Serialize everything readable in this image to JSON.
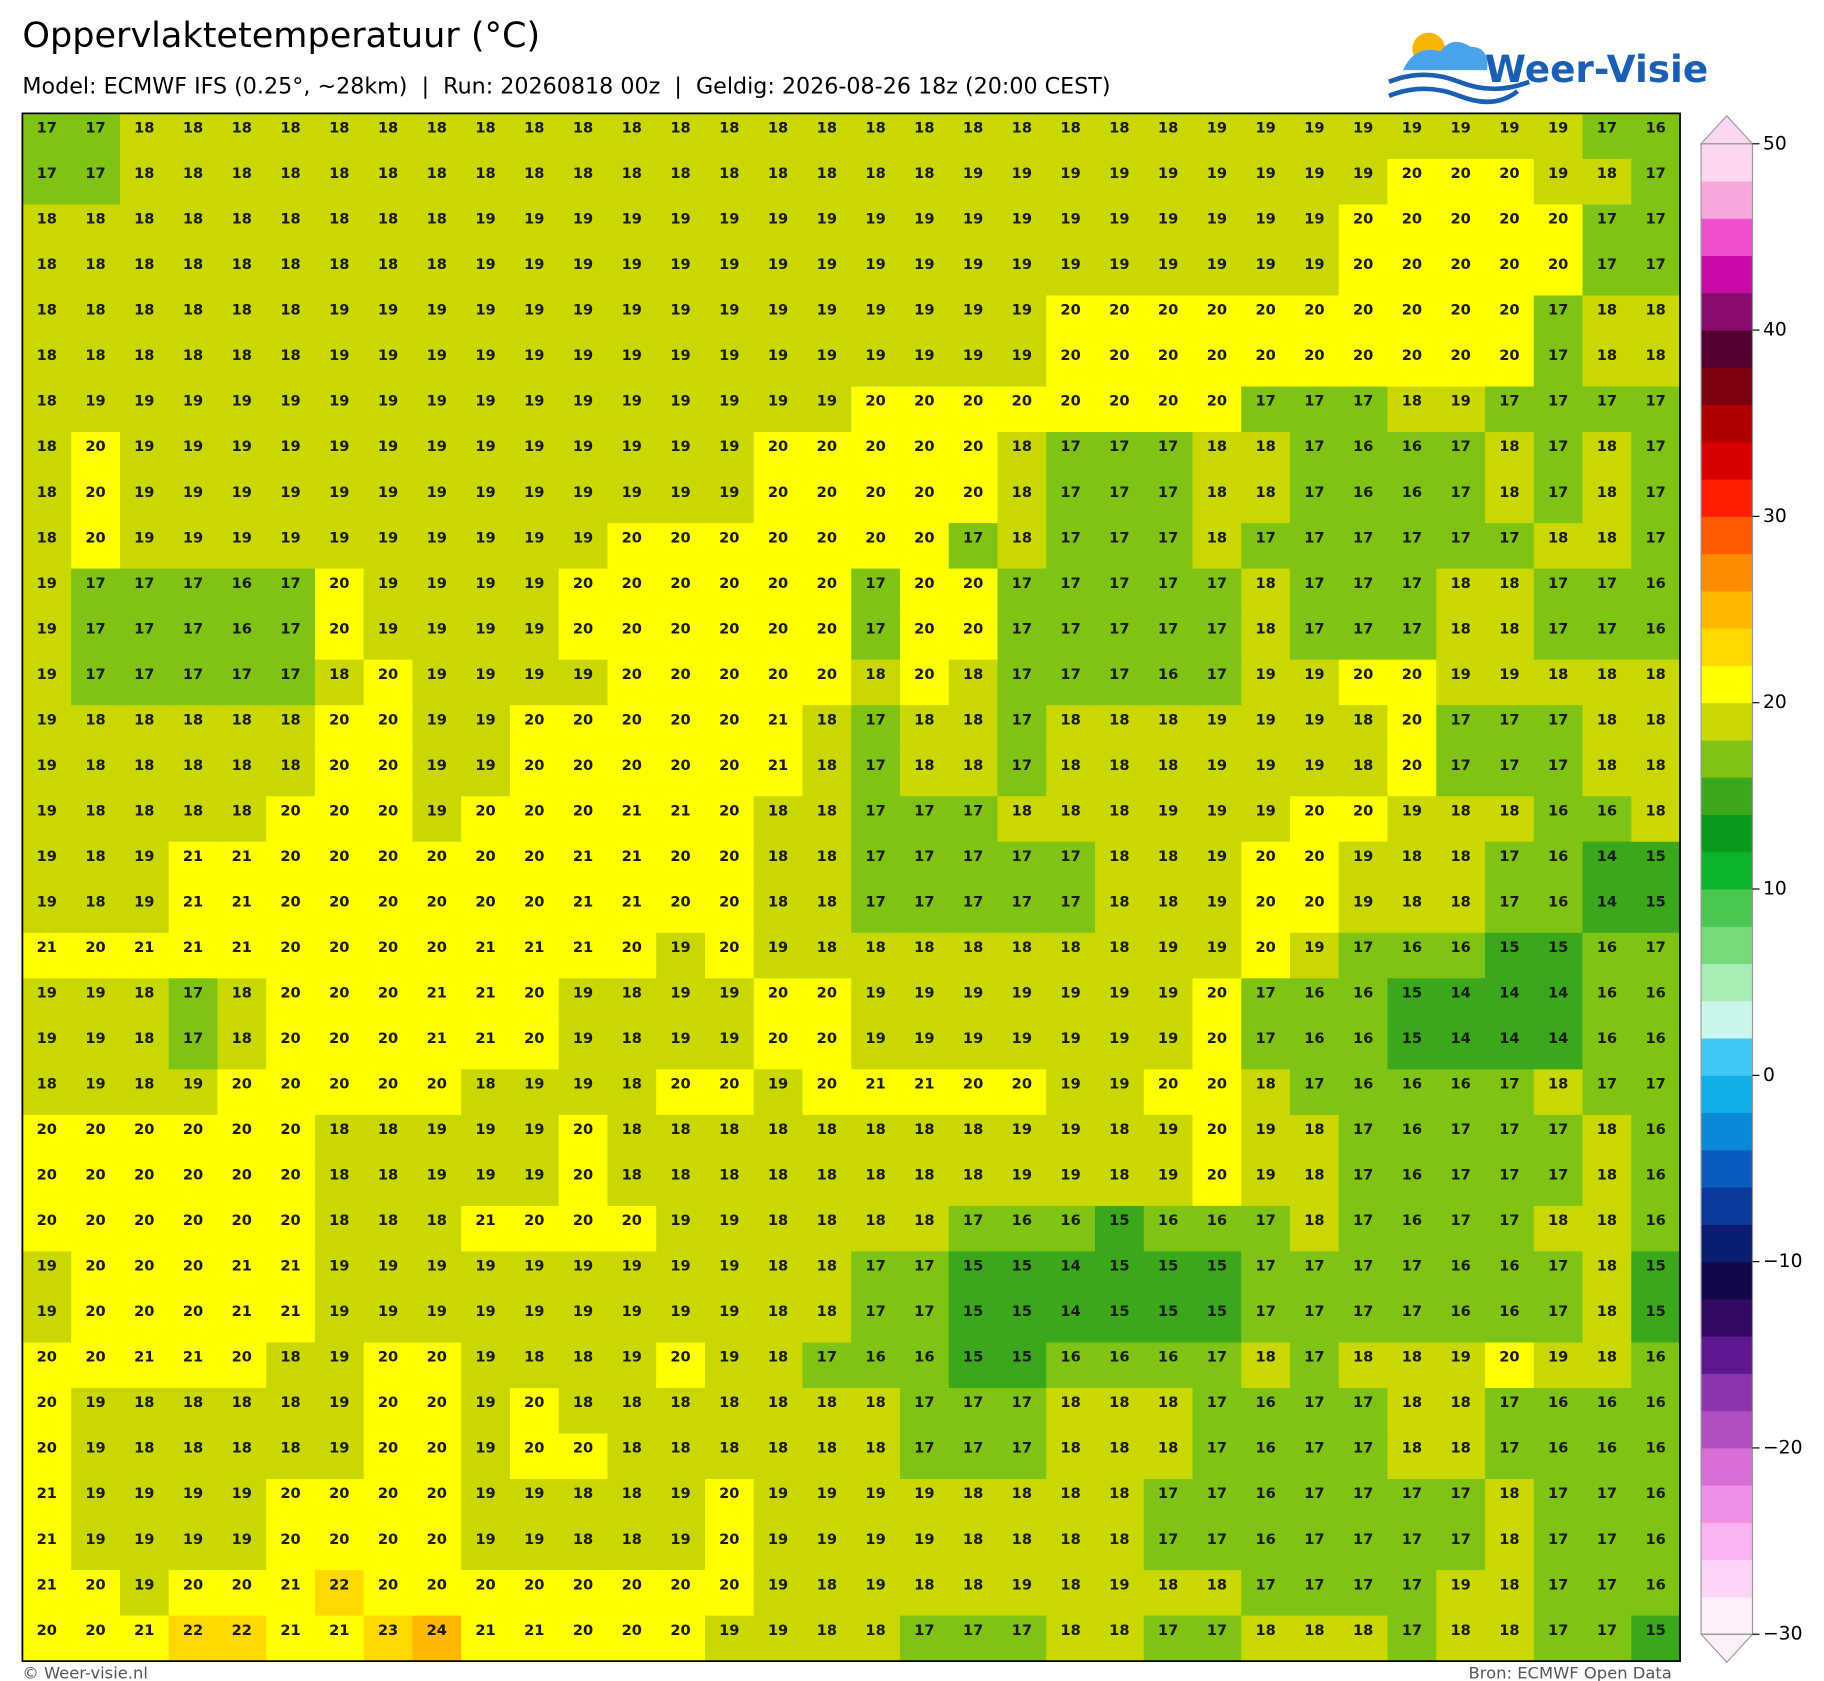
{
  "header": {
    "title": "Oppervlaktetemperatuur (°C)",
    "subtitle": "Model: ECMWF IFS (0.25°, ~28km)  |  Run: 20260818 00z  |  Geldig: 2026-08-26 18z (20:00 CEST)"
  },
  "logo": "Weer-Visie",
  "map": {
    "values": [
      [
        17,
        17,
        18,
        18,
        18,
        18,
        18,
        18,
        18,
        18,
        18,
        18,
        18,
        18,
        18,
        18,
        18,
        18,
        18,
        18,
        18,
        18,
        18,
        18,
        19,
        19,
        19,
        19,
        19,
        19,
        19,
        19,
        17,
        16
      ],
      [
        17,
        17,
        18,
        18,
        18,
        18,
        18,
        18,
        18,
        18,
        18,
        18,
        18,
        18,
        18,
        18,
        18,
        18,
        18,
        19,
        19,
        19,
        19,
        19,
        19,
        19,
        19,
        19,
        20,
        20,
        20,
        19,
        18,
        17
      ],
      [
        18,
        18,
        18,
        18,
        18,
        18,
        18,
        18,
        18,
        19,
        19,
        19,
        19,
        19,
        19,
        19,
        19,
        19,
        19,
        19,
        19,
        19,
        19,
        19,
        19,
        19,
        19,
        20,
        20,
        20,
        20,
        20,
        17,
        17
      ],
      [
        18,
        18,
        18,
        18,
        18,
        18,
        18,
        18,
        18,
        19,
        19,
        19,
        19,
        19,
        19,
        19,
        19,
        19,
        19,
        19,
        19,
        19,
        19,
        19,
        19,
        19,
        19,
        20,
        20,
        20,
        20,
        20,
        17,
        17
      ],
      [
        18,
        18,
        18,
        18,
        18,
        18,
        19,
        19,
        19,
        19,
        19,
        19,
        19,
        19,
        19,
        19,
        19,
        19,
        19,
        19,
        19,
        20,
        20,
        20,
        20,
        20,
        20,
        20,
        20,
        20,
        20,
        17,
        18,
        18
      ],
      [
        18,
        18,
        18,
        18,
        18,
        18,
        19,
        19,
        19,
        19,
        19,
        19,
        19,
        19,
        19,
        19,
        19,
        19,
        19,
        19,
        19,
        20,
        20,
        20,
        20,
        20,
        20,
        20,
        20,
        20,
        20,
        17,
        18,
        18
      ],
      [
        18,
        19,
        19,
        19,
        19,
        19,
        19,
        19,
        19,
        19,
        19,
        19,
        19,
        19,
        19,
        19,
        19,
        20,
        20,
        20,
        20,
        20,
        20,
        20,
        20,
        17,
        17,
        17,
        18,
        19,
        17,
        17,
        17,
        17
      ],
      [
        18,
        20,
        19,
        19,
        19,
        19,
        19,
        19,
        19,
        19,
        19,
        19,
        19,
        19,
        19,
        20,
        20,
        20,
        20,
        20,
        18,
        17,
        17,
        17,
        18,
        18,
        17,
        16,
        16,
        17,
        18,
        17,
        18,
        17
      ],
      [
        18,
        20,
        19,
        19,
        19,
        19,
        19,
        19,
        19,
        19,
        19,
        19,
        19,
        19,
        19,
        20,
        20,
        20,
        20,
        20,
        18,
        17,
        17,
        17,
        18,
        18,
        17,
        16,
        16,
        17,
        18,
        17,
        18,
        17
      ],
      [
        18,
        20,
        19,
        19,
        19,
        19,
        19,
        19,
        19,
        19,
        19,
        19,
        20,
        20,
        20,
        20,
        20,
        20,
        20,
        17,
        18,
        17,
        17,
        17,
        18,
        17,
        17,
        17,
        17,
        17,
        17,
        18,
        18,
        17
      ],
      [
        19,
        17,
        17,
        17,
        16,
        17,
        20,
        19,
        19,
        19,
        19,
        20,
        20,
        20,
        20,
        20,
        20,
        17,
        20,
        20,
        17,
        17,
        17,
        17,
        17,
        18,
        17,
        17,
        17,
        18,
        18,
        17,
        17,
        16
      ],
      [
        19,
        17,
        17,
        17,
        16,
        17,
        20,
        19,
        19,
        19,
        19,
        20,
        20,
        20,
        20,
        20,
        20,
        17,
        20,
        20,
        17,
        17,
        17,
        17,
        17,
        18,
        17,
        17,
        17,
        18,
        18,
        17,
        17,
        16
      ],
      [
        19,
        17,
        17,
        17,
        17,
        17,
        18,
        20,
        19,
        19,
        19,
        19,
        20,
        20,
        20,
        20,
        20,
        18,
        20,
        18,
        17,
        17,
        17,
        16,
        17,
        19,
        19,
        20,
        20,
        19,
        19,
        18,
        18,
        18
      ],
      [
        19,
        18,
        18,
        18,
        18,
        18,
        20,
        20,
        19,
        19,
        20,
        20,
        20,
        20,
        20,
        21,
        18,
        17,
        18,
        18,
        17,
        18,
        18,
        18,
        19,
        19,
        19,
        18,
        20,
        17,
        17,
        17,
        18,
        18
      ],
      [
        19,
        18,
        18,
        18,
        18,
        18,
        20,
        20,
        19,
        19,
        20,
        20,
        20,
        20,
        20,
        21,
        18,
        17,
        18,
        18,
        17,
        18,
        18,
        18,
        19,
        19,
        19,
        18,
        20,
        17,
        17,
        17,
        18,
        18
      ],
      [
        19,
        18,
        18,
        18,
        18,
        20,
        20,
        20,
        19,
        20,
        20,
        20,
        21,
        21,
        20,
        18,
        18,
        17,
        17,
        17,
        18,
        18,
        18,
        19,
        19,
        19,
        20,
        20,
        19,
        18,
        18,
        16,
        16,
        18
      ],
      [
        19,
        18,
        19,
        21,
        21,
        20,
        20,
        20,
        20,
        20,
        20,
        21,
        21,
        20,
        20,
        18,
        18,
        17,
        17,
        17,
        17,
        17,
        18,
        18,
        19,
        20,
        20,
        19,
        18,
        18,
        17,
        16,
        14,
        15
      ],
      [
        19,
        18,
        19,
        21,
        21,
        20,
        20,
        20,
        20,
        20,
        20,
        21,
        21,
        20,
        20,
        18,
        18,
        17,
        17,
        17,
        17,
        17,
        18,
        18,
        19,
        20,
        20,
        19,
        18,
        18,
        17,
        16,
        14,
        15
      ],
      [
        21,
        20,
        21,
        21,
        21,
        20,
        20,
        20,
        20,
        21,
        21,
        21,
        20,
        19,
        20,
        19,
        18,
        18,
        18,
        18,
        18,
        18,
        18,
        19,
        19,
        20,
        19,
        17,
        16,
        16,
        15,
        15,
        16,
        17
      ],
      [
        19,
        19,
        18,
        17,
        18,
        20,
        20,
        20,
        21,
        21,
        20,
        19,
        18,
        19,
        19,
        20,
        20,
        19,
        19,
        19,
        19,
        19,
        19,
        19,
        20,
        17,
        16,
        16,
        15,
        14,
        14,
        14,
        16,
        16
      ],
      [
        19,
        19,
        18,
        17,
        18,
        20,
        20,
        20,
        21,
        21,
        20,
        19,
        18,
        19,
        19,
        20,
        20,
        19,
        19,
        19,
        19,
        19,
        19,
        19,
        20,
        17,
        16,
        16,
        15,
        14,
        14,
        14,
        16,
        16
      ],
      [
        18,
        19,
        18,
        19,
        20,
        20,
        20,
        20,
        20,
        18,
        19,
        19,
        18,
        20,
        20,
        19,
        20,
        21,
        21,
        20,
        20,
        19,
        19,
        20,
        20,
        18,
        17,
        16,
        16,
        16,
        17,
        18,
        17,
        17
      ],
      [
        20,
        20,
        20,
        20,
        20,
        20,
        18,
        18,
        19,
        19,
        19,
        20,
        18,
        18,
        18,
        18,
        18,
        18,
        18,
        18,
        19,
        19,
        18,
        19,
        20,
        19,
        18,
        17,
        16,
        17,
        17,
        17,
        18,
        16
      ],
      [
        20,
        20,
        20,
        20,
        20,
        20,
        18,
        18,
        19,
        19,
        19,
        20,
        18,
        18,
        18,
        18,
        18,
        18,
        18,
        18,
        19,
        19,
        18,
        19,
        20,
        19,
        18,
        17,
        16,
        17,
        17,
        17,
        18,
        16
      ],
      [
        20,
        20,
        20,
        20,
        20,
        20,
        18,
        18,
        18,
        21,
        20,
        20,
        20,
        19,
        19,
        18,
        18,
        18,
        18,
        17,
        16,
        16,
        15,
        16,
        16,
        17,
        18,
        17,
        16,
        17,
        17,
        18,
        18,
        16
      ],
      [
        19,
        20,
        20,
        20,
        21,
        21,
        19,
        19,
        19,
        19,
        19,
        19,
        19,
        19,
        19,
        18,
        18,
        17,
        17,
        15,
        15,
        14,
        15,
        15,
        15,
        17,
        17,
        17,
        17,
        16,
        16,
        17,
        18,
        15
      ],
      [
        19,
        20,
        20,
        20,
        21,
        21,
        19,
        19,
        19,
        19,
        19,
        19,
        19,
        19,
        19,
        18,
        18,
        17,
        17,
        15,
        15,
        14,
        15,
        15,
        15,
        17,
        17,
        17,
        17,
        16,
        16,
        17,
        18,
        15
      ],
      [
        20,
        20,
        21,
        21,
        20,
        18,
        19,
        20,
        20,
        19,
        18,
        18,
        19,
        20,
        19,
        18,
        17,
        16,
        16,
        15,
        15,
        16,
        16,
        16,
        17,
        18,
        17,
        18,
        18,
        19,
        20,
        19,
        18,
        16
      ],
      [
        20,
        19,
        18,
        18,
        18,
        18,
        19,
        20,
        20,
        19,
        20,
        18,
        18,
        18,
        18,
        18,
        18,
        18,
        17,
        17,
        17,
        18,
        18,
        18,
        17,
        16,
        17,
        17,
        18,
        18,
        17,
        16,
        16,
        16
      ],
      [
        20,
        19,
        18,
        18,
        18,
        18,
        19,
        20,
        20,
        19,
        20,
        20,
        18,
        18,
        18,
        18,
        18,
        18,
        17,
        17,
        17,
        18,
        18,
        18,
        17,
        16,
        17,
        17,
        18,
        18,
        17,
        16,
        16,
        16
      ],
      [
        21,
        19,
        19,
        19,
        19,
        20,
        20,
        20,
        20,
        19,
        19,
        18,
        18,
        19,
        20,
        19,
        19,
        19,
        19,
        18,
        18,
        18,
        18,
        17,
        17,
        16,
        17,
        17,
        17,
        17,
        18,
        17,
        17,
        16
      ],
      [
        21,
        19,
        19,
        19,
        19,
        20,
        20,
        20,
        20,
        19,
        19,
        18,
        18,
        19,
        20,
        19,
        19,
        19,
        19,
        18,
        18,
        18,
        18,
        17,
        17,
        16,
        17,
        17,
        17,
        17,
        18,
        17,
        17,
        16
      ],
      [
        21,
        20,
        19,
        20,
        20,
        21,
        22,
        20,
        20,
        20,
        20,
        20,
        20,
        20,
        20,
        19,
        18,
        19,
        18,
        18,
        19,
        18,
        19,
        18,
        18,
        17,
        17,
        17,
        17,
        19,
        18,
        17,
        17,
        16
      ],
      [
        20,
        20,
        21,
        22,
        22,
        21,
        21,
        23,
        24,
        21,
        21,
        20,
        20,
        20,
        19,
        19,
        18,
        18,
        17,
        17,
        17,
        18,
        18,
        17,
        17,
        18,
        18,
        18,
        17,
        18,
        18,
        17,
        17,
        15
      ]
    ]
  },
  "colorbar": {
    "lim": [
      -30,
      50
    ],
    "ticks": [
      50,
      40,
      30,
      20,
      10,
      0,
      {
        "value": -10,
        "label": "−10"
      },
      {
        "value": -20,
        "label": "−20"
      },
      {
        "value": -30,
        "label": "−30"
      }
    ],
    "colors": [
      "#fdf0fb",
      "#fcd6f6",
      "#f9b3f0",
      "#ef8fe6",
      "#d86fd6",
      "#b24dbf",
      "#8c34ab",
      "#5d1890",
      "#320a66",
      "#13094a",
      "#0a1d70",
      "#0a3b9c",
      "#0b5cc0",
      "#0a8ad8",
      "#12aee8",
      "#3ec8f2",
      "#c9f7ee",
      "#a7ecb0",
      "#76d97a",
      "#48c64f",
      "#0ab52c",
      "#0a9a1e",
      "#3aa81a",
      "#7fc415",
      "#c8d800",
      "#ffff00",
      "#ffd800",
      "#ffb700",
      "#ff8c00",
      "#ff5a00",
      "#ff1e00",
      "#d80000",
      "#b00000",
      "#7d0010",
      "#550030",
      "#8b0a6e",
      "#c70aa8",
      "#f050d0",
      "#f8a8dc",
      "#fbd8f0"
    ]
  },
  "footer": {
    "left": "© Weer-visie.nl",
    "right": "Bron: ECMWF Open Data"
  }
}
